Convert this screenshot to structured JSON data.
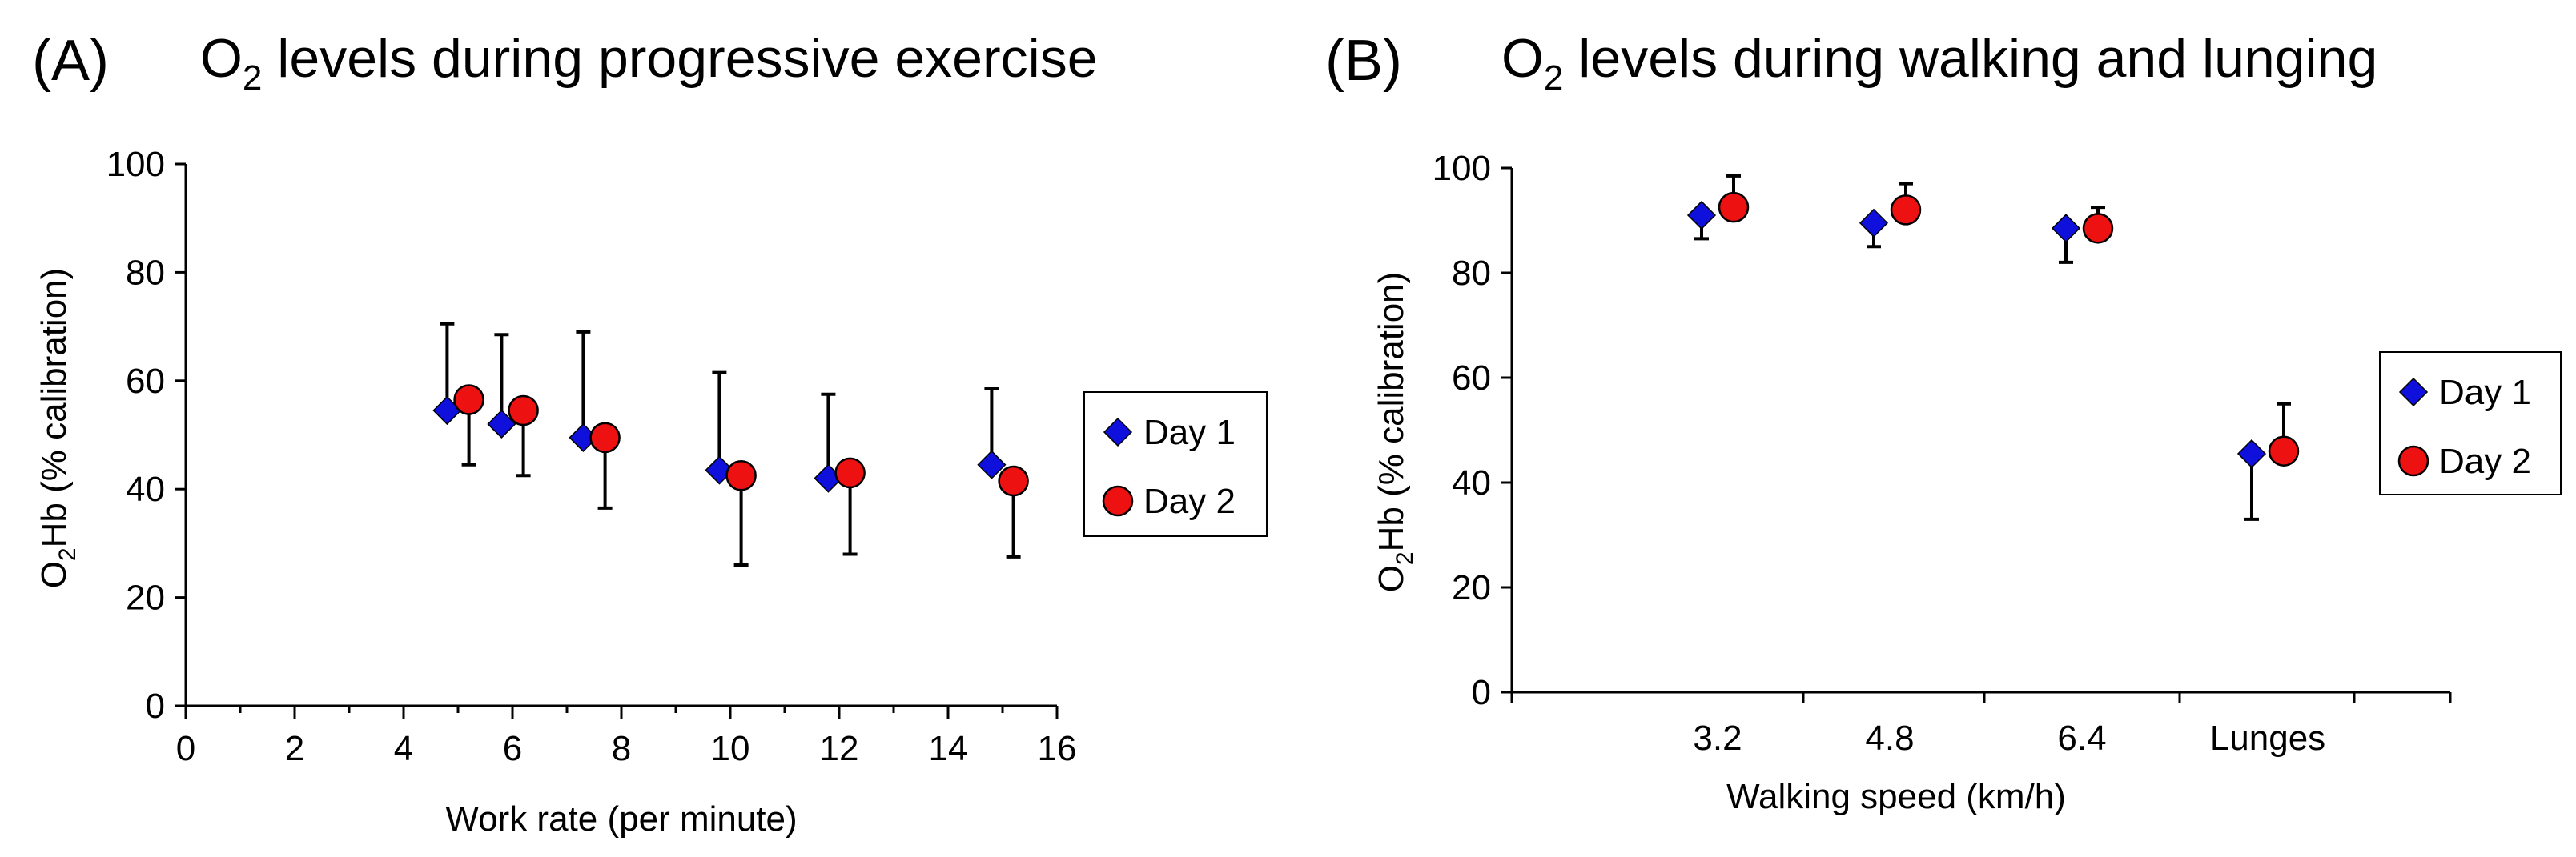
{
  "chart_data": [
    {
      "type": "scatter",
      "panel": "(A)",
      "title_prefix": "O",
      "title_sub": "2",
      "title_rest": " levels during progressive exercise",
      "xlabel": "Work rate (per minute)",
      "ylabel_prefix": "O",
      "ylabel_sub": "2",
      "ylabel_rest": "Hb (% calibration)",
      "xlim": [
        0,
        16
      ],
      "ylim": [
        0,
        100
      ],
      "xticks": [
        "0",
        "2",
        "4",
        "6",
        "8",
        "10",
        "12",
        "14",
        "16"
      ],
      "yticks": [
        "0",
        "20",
        "40",
        "60",
        "80",
        "100"
      ],
      "legend": [
        "Day 1",
        "Day 2"
      ],
      "series": [
        {
          "name": "Day 1",
          "marker": "diamond",
          "color": "#1010dd",
          "x": [
            4.8,
            5.8,
            7.3,
            9.8,
            11.8,
            14.8
          ],
          "y": [
            54.5,
            52,
            49.5,
            43.5,
            42,
            44.5
          ],
          "err_up": [
            16,
            16.5,
            19.5,
            18,
            15.5,
            14
          ],
          "err_down": [
            0,
            0,
            0,
            0,
            0,
            0
          ]
        },
        {
          "name": "Day 2",
          "marker": "circle",
          "color": "#ee1111",
          "x": [
            5.2,
            6.2,
            7.7,
            10.2,
            12.2,
            15.2
          ],
          "y": [
            56.5,
            54.5,
            49.5,
            42.5,
            43,
            41.5
          ],
          "err_up": [
            0,
            0,
            0,
            0,
            0,
            0
          ],
          "err_down": [
            12,
            12,
            13,
            16.5,
            15,
            14
          ]
        }
      ]
    },
    {
      "type": "scatter",
      "panel": "(B)",
      "title_prefix": "O",
      "title_sub": "2",
      "title_rest": " levels during walking and lunging",
      "xlabel": "Walking speed (km/h)",
      "ylabel_prefix": "O",
      "ylabel_sub": "2",
      "ylabel_rest": "Hb (% calibration)",
      "categories": [
        "3.2",
        "4.8",
        "6.4",
        "Lunges"
      ],
      "ylim": [
        0,
        100
      ],
      "yticks": [
        "0",
        "20",
        "40",
        "60",
        "80",
        "100"
      ],
      "legend": [
        "Day 1",
        "Day 2"
      ],
      "series": [
        {
          "name": "Day 1",
          "marker": "diamond",
          "color": "#1010dd",
          "y": [
            91,
            89.5,
            88.5,
            45.5
          ],
          "err_up": [
            0,
            0,
            0,
            0
          ],
          "err_down": [
            4.5,
            4.5,
            6.5,
            12.5
          ]
        },
        {
          "name": "Day 2",
          "marker": "circle",
          "color": "#ee1111",
          "y": [
            92.5,
            92,
            88.5,
            46
          ],
          "err_up": [
            6,
            5,
            4,
            9
          ],
          "err_down": [
            0,
            0,
            0,
            0
          ]
        }
      ]
    }
  ]
}
